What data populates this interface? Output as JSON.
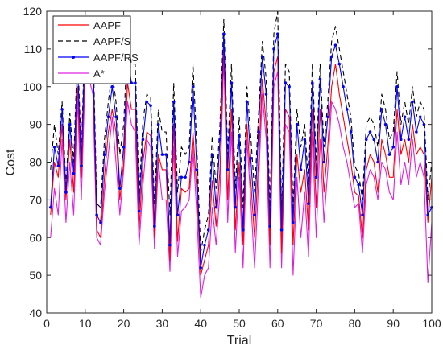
{
  "chart_data": {
    "type": "line",
    "xlabel": "Trial",
    "ylabel": "Cost",
    "xlim": [
      0,
      100
    ],
    "ylim": [
      40,
      120
    ],
    "xticks": [
      "0",
      "10",
      "20",
      "30",
      "40",
      "50",
      "60",
      "70",
      "80",
      "90",
      "100"
    ],
    "yticks": [
      "40",
      "50",
      "60",
      "70",
      "80",
      "90",
      "100",
      "110",
      "120"
    ],
    "grid": false,
    "legend_position": "top-left",
    "series": [
      {
        "name": "AAPF",
        "color": "#ff0000",
        "style": "solid",
        "x": [
          1,
          2,
          3,
          4,
          5,
          6,
          7,
          8,
          9,
          10,
          11,
          12,
          13,
          14,
          15,
          16,
          17,
          18,
          19,
          20,
          21,
          22,
          23,
          24,
          25,
          26,
          27,
          28,
          29,
          30,
          31,
          32,
          33,
          34,
          35,
          36,
          37,
          38,
          39,
          40,
          41,
          42,
          43,
          44,
          45,
          46,
          47,
          48,
          49,
          50,
          51,
          52,
          53,
          54,
          55,
          56,
          57,
          58,
          59,
          60,
          61,
          62,
          63,
          64,
          65,
          66,
          67,
          68,
          69,
          70,
          71,
          72,
          73,
          74,
          75,
          76,
          77,
          78,
          79,
          80,
          81,
          82,
          83,
          84,
          85,
          86,
          87,
          88,
          89,
          90,
          91,
          92,
          93,
          94,
          95,
          96,
          97,
          98,
          99,
          100
        ],
        "values": [
          66,
          80,
          76,
          90,
          70,
          86,
          72,
          100,
          76,
          108,
          104,
          104,
          62,
          60,
          76,
          88,
          94,
          88,
          70,
          80,
          101,
          94,
          94,
          62,
          80,
          88,
          87,
          60,
          82,
          78,
          78,
          54,
          90,
          59,
          73,
          72,
          73,
          88,
          72,
          50,
          54,
          58,
          75,
          63,
          78,
          110,
          70,
          94,
          62,
          80,
          58,
          90,
          75,
          60,
          80,
          102,
          90,
          58,
          104,
          108,
          56,
          94,
          92,
          58,
          82,
          72,
          78,
          62,
          94,
          68,
          94,
          72,
          84,
          100,
          106,
          98,
          92,
          86,
          80,
          72,
          71,
          60,
          78,
          82,
          80,
          72,
          86,
          82,
          76,
          76,
          94,
          82,
          86,
          80,
          90,
          82,
          84,
          82,
          64,
          76
        ]
      },
      {
        "name": "AAPF/S",
        "color": "#000000",
        "style": "dashed",
        "x": [
          1,
          2,
          3,
          4,
          5,
          6,
          7,
          8,
          9,
          10,
          11,
          12,
          13,
          14,
          15,
          16,
          17,
          18,
          19,
          20,
          21,
          22,
          23,
          24,
          25,
          26,
          27,
          28,
          29,
          30,
          31,
          32,
          33,
          34,
          35,
          36,
          37,
          38,
          39,
          40,
          41,
          42,
          43,
          44,
          45,
          46,
          47,
          48,
          49,
          50,
          51,
          52,
          53,
          54,
          55,
          56,
          57,
          58,
          59,
          60,
          61,
          62,
          63,
          64,
          65,
          66,
          67,
          68,
          69,
          70,
          71,
          72,
          73,
          74,
          75,
          76,
          77,
          78,
          79,
          80,
          81,
          82,
          83,
          84,
          85,
          86,
          87,
          88,
          89,
          90,
          91,
          92,
          93,
          94,
          95,
          96,
          97,
          98,
          99,
          100
        ],
        "values": [
          78,
          90,
          82,
          96,
          74,
          93,
          80,
          110,
          82,
          118,
          113,
          113,
          69,
          68,
          86,
          96,
          104,
          96,
          82,
          90,
          113,
          106,
          106,
          71,
          91,
          98,
          97,
          69,
          94,
          88,
          88,
          66,
          101,
          72,
          84,
          82,
          84,
          106,
          84,
          56,
          62,
          66,
          87,
          73,
          90,
          118,
          82,
          106,
          73,
          92,
          68,
          100,
          87,
          72,
          92,
          112,
          102,
          68,
          114,
          120,
          67,
          106,
          104,
          68,
          94,
          84,
          90,
          74,
          106,
          80,
          106,
          84,
          96,
          112,
          116,
          110,
          104,
          98,
          92,
          79,
          77,
          70,
          90,
          92,
          90,
          84,
          98,
          94,
          86,
          88,
          104,
          90,
          96,
          90,
          100,
          92,
          96,
          94,
          70,
          80
        ]
      },
      {
        "name": "AAPF/RS",
        "color": "#0000ff",
        "style": "solid-marker",
        "x": [
          1,
          2,
          3,
          4,
          5,
          6,
          7,
          8,
          9,
          10,
          11,
          12,
          13,
          14,
          15,
          16,
          17,
          18,
          19,
          20,
          21,
          22,
          23,
          24,
          25,
          26,
          27,
          28,
          29,
          30,
          31,
          32,
          33,
          34,
          35,
          36,
          37,
          38,
          39,
          40,
          41,
          42,
          43,
          44,
          45,
          46,
          47,
          48,
          49,
          50,
          51,
          52,
          53,
          54,
          55,
          56,
          57,
          58,
          59,
          60,
          61,
          62,
          63,
          64,
          65,
          66,
          67,
          68,
          69,
          70,
          71,
          72,
          73,
          74,
          75,
          76,
          77,
          78,
          79,
          80,
          81,
          82,
          83,
          84,
          85,
          86,
          87,
          88,
          89,
          90,
          91,
          92,
          93,
          94,
          95,
          96,
          97,
          98,
          99,
          100
        ],
        "values": [
          68,
          84,
          79,
          94,
          72,
          90,
          77,
          106,
          79,
          114,
          109,
          109,
          66,
          64,
          82,
          92,
          100,
          92,
          73,
          84,
          108,
          101,
          101,
          67,
          86,
          96,
          95,
          63,
          90,
          82,
          82,
          58,
          96,
          66,
          76,
          76,
          80,
          100,
          78,
          52,
          58,
          62,
          82,
          68,
          86,
          114,
          78,
          101,
          68,
          87,
          62,
          96,
          81,
          66,
          88,
          108,
          98,
          63,
          110,
          114,
          62,
          101,
          100,
          64,
          90,
          78,
          86,
          69,
          101,
          76,
          102,
          80,
          92,
          108,
          111,
          106,
          100,
          94,
          88,
          76,
          74,
          66,
          86,
          88,
          86,
          80,
          94,
          90,
          82,
          84,
          100,
          86,
          92,
          86,
          96,
          88,
          92,
          90,
          66,
          68
        ]
      },
      {
        "name": "A*",
        "color": "#e020e0",
        "style": "solid",
        "x": [
          1,
          2,
          3,
          4,
          5,
          6,
          7,
          8,
          9,
          10,
          11,
          12,
          13,
          14,
          15,
          16,
          17,
          18,
          19,
          20,
          21,
          22,
          23,
          24,
          25,
          26,
          27,
          28,
          29,
          30,
          31,
          32,
          33,
          34,
          35,
          36,
          37,
          38,
          39,
          40,
          41,
          42,
          43,
          44,
          45,
          46,
          47,
          48,
          49,
          50,
          51,
          52,
          53,
          54,
          55,
          56,
          57,
          58,
          59,
          60,
          61,
          62,
          63,
          64,
          65,
          66,
          67,
          68,
          69,
          70,
          71,
          72,
          73,
          74,
          75,
          76,
          77,
          78,
          79,
          80,
          81,
          82,
          83,
          84,
          85,
          86,
          87,
          88,
          89,
          90,
          91,
          92,
          93,
          94,
          95,
          96,
          97,
          98,
          99,
          100
        ],
        "values": [
          60,
          73,
          66,
          86,
          64,
          80,
          66,
          96,
          70,
          104,
          102,
          98,
          60,
          58,
          72,
          82,
          92,
          80,
          66,
          78,
          96,
          90,
          88,
          58,
          74,
          86,
          84,
          57,
          80,
          70,
          70,
          51,
          84,
          55,
          67,
          68,
          70,
          84,
          66,
          44,
          50,
          52,
          68,
          58,
          72,
          108,
          64,
          88,
          56,
          76,
          52,
          86,
          70,
          52,
          74,
          98,
          86,
          52,
          100,
          104,
          52,
          90,
          88,
          50,
          76,
          60,
          72,
          55,
          88,
          60,
          86,
          64,
          78,
          96,
          94,
          90,
          84,
          80,
          74,
          68,
          69,
          56,
          74,
          78,
          76,
          70,
          80,
          78,
          72,
          70,
          88,
          74,
          80,
          74,
          86,
          76,
          80,
          76,
          48,
          64
        ]
      }
    ]
  }
}
